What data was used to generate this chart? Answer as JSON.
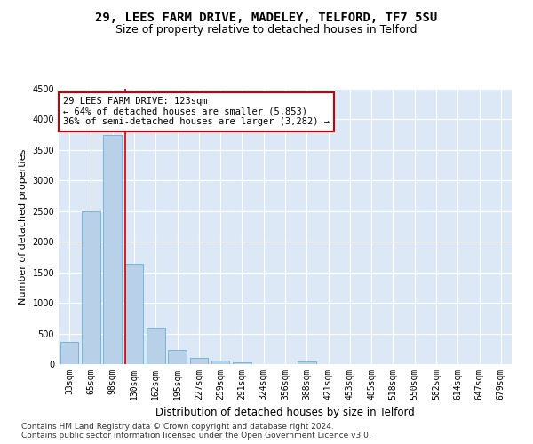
{
  "title1": "29, LEES FARM DRIVE, MADELEY, TELFORD, TF7 5SU",
  "title2": "Size of property relative to detached houses in Telford",
  "xlabel": "Distribution of detached houses by size in Telford",
  "ylabel": "Number of detached properties",
  "categories": [
    "33sqm",
    "65sqm",
    "98sqm",
    "130sqm",
    "162sqm",
    "195sqm",
    "227sqm",
    "259sqm",
    "291sqm",
    "324sqm",
    "356sqm",
    "388sqm",
    "421sqm",
    "453sqm",
    "485sqm",
    "518sqm",
    "550sqm",
    "582sqm",
    "614sqm",
    "647sqm",
    "679sqm"
  ],
  "values": [
    370,
    2500,
    3750,
    1640,
    590,
    230,
    105,
    60,
    35,
    5,
    3,
    50,
    3,
    2,
    1,
    0,
    0,
    0,
    0,
    0,
    0
  ],
  "bar_color": "#b8d0e8",
  "bar_edge_color": "#6aaed6",
  "line_index": 2.575,
  "property_line_color": "#cc0000",
  "annotation_text": "29 LEES FARM DRIVE: 123sqm\n← 64% of detached houses are smaller (5,853)\n36% of semi-detached houses are larger (3,282) →",
  "annotation_box_color": "#ffffff",
  "annotation_box_edge": "#cc0000",
  "ylim": [
    0,
    4500
  ],
  "yticks": [
    0,
    500,
    1000,
    1500,
    2000,
    2500,
    3000,
    3500,
    4000,
    4500
  ],
  "bg_color": "#dce8f5",
  "grid_color": "#ffffff",
  "footer_line1": "Contains HM Land Registry data © Crown copyright and database right 2024.",
  "footer_line2": "Contains public sector information licensed under the Open Government Licence v3.0.",
  "title1_fontsize": 10,
  "title2_fontsize": 9,
  "xlabel_fontsize": 8.5,
  "ylabel_fontsize": 8,
  "tick_fontsize": 7,
  "annotation_fontsize": 7.5,
  "footer_fontsize": 6.5
}
